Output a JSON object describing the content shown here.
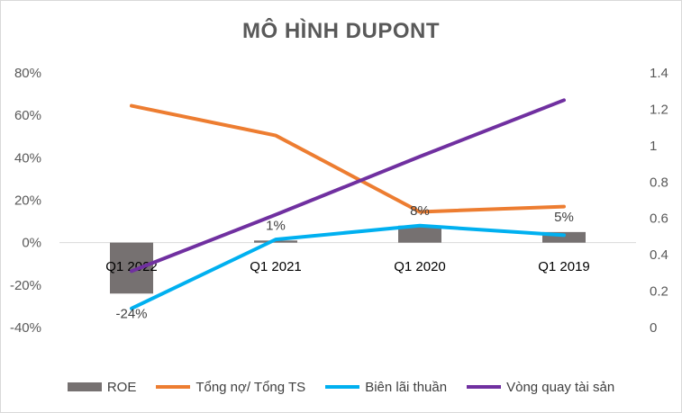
{
  "chart_data": {
    "type": "bar+line",
    "title": "MÔ HÌNH DUPONT",
    "categories": [
      "Q1 2022",
      "Q1 2021",
      "Q1 2020",
      "Q1 2019"
    ],
    "y_left": {
      "range": [
        -0.4,
        0.8
      ],
      "ticks": [
        "-40%",
        "-20%",
        "0%",
        "20%",
        "40%",
        "60%",
        "80%"
      ]
    },
    "y_right": {
      "range": [
        0,
        1.4
      ],
      "ticks": [
        "0",
        "0.2",
        "0.4",
        "0.6",
        "0.8",
        "1",
        "1.2",
        "1.4"
      ]
    },
    "series": [
      {
        "name": "ROE",
        "kind": "bar",
        "axis": "left",
        "color": "#767171",
        "values": [
          -0.24,
          0.01,
          0.08,
          0.05
        ],
        "data_labels": [
          "-24%",
          "1%",
          "8%",
          "5%"
        ]
      },
      {
        "name": "Tổng nợ/ Tổng TS",
        "kind": "line",
        "axis": "left",
        "color": "#ed7d31",
        "values": [
          0.645,
          0.505,
          0.145,
          0.17
        ]
      },
      {
        "name": "Biên lãi thuần",
        "kind": "line",
        "axis": "left",
        "color": "#00b0f0",
        "values": [
          -0.31,
          0.015,
          0.08,
          0.035
        ]
      },
      {
        "name": "Vòng quay tài sản",
        "kind": "line",
        "axis": "right",
        "color": "#7030a0",
        "values": [
          0.31,
          0.62,
          0.94,
          1.25
        ]
      }
    ],
    "legend_position": "bottom",
    "grid": false
  }
}
